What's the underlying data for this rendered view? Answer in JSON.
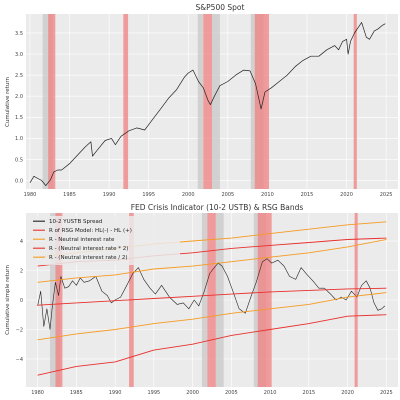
{
  "chart_data": [
    {
      "type": "line",
      "title": "S&P500 Spot",
      "xlabel": "",
      "ylabel": "Cumulative return",
      "xlim": [
        1979.5,
        2026.5
      ],
      "ylim": [
        -0.2,
        3.95
      ],
      "xticks": [
        1980,
        1985,
        1990,
        1995,
        2000,
        2005,
        2010,
        2015,
        2020,
        2025
      ],
      "yticks": [
        0.0,
        0.5,
        1.0,
        1.5,
        2.0,
        2.5,
        3.0,
        3.5
      ],
      "ytick_labels": [
        "0.0",
        "0.5",
        "1.0",
        "1.5",
        "2.0",
        "2.5",
        "3.0",
        "3.5"
      ],
      "grid": true,
      "bands": [
        {
          "start": 1981.6,
          "end": 1982.9,
          "kind": "recession",
          "color": "#c8c8c8"
        },
        {
          "start": 1982.3,
          "end": 1983.2,
          "kind": "crisis",
          "color": "#f08080"
        },
        {
          "start": 1991.8,
          "end": 1992.4,
          "kind": "crisis",
          "color": "#f08080"
        },
        {
          "start": 2001.2,
          "end": 2001.9,
          "kind": "recession",
          "color": "#c8c8c8"
        },
        {
          "start": 2001.9,
          "end": 2003.0,
          "kind": "crisis",
          "color": "#f08080"
        },
        {
          "start": 2003.0,
          "end": 2004.0,
          "kind": "recession",
          "color": "#c8c8c8"
        },
        {
          "start": 2007.9,
          "end": 2009.5,
          "kind": "recession",
          "color": "#c8c8c8"
        },
        {
          "start": 2008.4,
          "end": 2010.2,
          "kind": "crisis",
          "color": "#f08080"
        },
        {
          "start": 2020.9,
          "end": 2021.3,
          "kind": "crisis",
          "color": "#f08080"
        }
      ],
      "series": [
        {
          "color": "#222222",
          "x": [
            1980.0,
            1980.5,
            1981.0,
            1981.5,
            1982.0,
            1982.6,
            1983.0,
            1983.5,
            1984.0,
            1985.0,
            1986.0,
            1987.0,
            1987.7,
            1987.9,
            1988.5,
            1989.5,
            1990.3,
            1990.8,
            1991.5,
            1992.5,
            1993.5,
            1994.5,
            1995.5,
            1996.5,
            1997.5,
            1998.5,
            1999.5,
            2000.0,
            2000.6,
            2001.3,
            2001.9,
            2002.5,
            2002.8,
            2003.3,
            2004.0,
            2005.0,
            2006.0,
            2007.0,
            2007.8,
            2008.5,
            2009.2,
            2009.7,
            2010.5,
            2011.5,
            2012.5,
            2013.5,
            2014.5,
            2015.5,
            2016.5,
            2017.5,
            2018.5,
            2019.0,
            2019.5,
            2020.0,
            2020.2,
            2020.5,
            2021.0,
            2021.9,
            2022.5,
            2022.9,
            2023.5,
            2024.0,
            2024.5,
            2024.9
          ],
          "values": [
            -0.05,
            0.1,
            0.05,
            0.0,
            -0.12,
            0.02,
            0.2,
            0.25,
            0.25,
            0.4,
            0.6,
            0.8,
            0.92,
            0.58,
            0.72,
            0.95,
            1.0,
            0.85,
            1.05,
            1.18,
            1.25,
            1.2,
            1.45,
            1.7,
            1.95,
            2.15,
            2.45,
            2.55,
            2.62,
            2.35,
            2.2,
            1.9,
            1.8,
            2.0,
            2.25,
            2.35,
            2.5,
            2.62,
            2.6,
            2.3,
            1.7,
            2.1,
            2.2,
            2.35,
            2.5,
            2.7,
            2.85,
            2.95,
            2.95,
            3.1,
            3.2,
            3.1,
            3.3,
            3.35,
            3.0,
            3.3,
            3.5,
            3.75,
            3.4,
            3.35,
            3.55,
            3.6,
            3.68,
            3.72
          ]
        }
      ]
    },
    {
      "type": "line",
      "title": "FED Crisis Indicator (10-2 USTB) & RSG Bands",
      "xlabel": "",
      "ylabel": "Cumulative simple return",
      "xlim": [
        1978.5,
        2026.5
      ],
      "ylim": [
        -5.9,
        5.9
      ],
      "xticks": [
        1980,
        1985,
        1990,
        1995,
        2000,
        2005,
        2010,
        2015,
        2020,
        2025
      ],
      "yticks": [
        -4,
        -2,
        0,
        2,
        4
      ],
      "ytick_labels": [
        "−4",
        "−2",
        "0",
        "2",
        "4"
      ],
      "grid": true,
      "legend_position": "top-left",
      "bands": [
        {
          "start": 1981.6,
          "end": 1982.9,
          "kind": "recession",
          "color": "#c8c8c8"
        },
        {
          "start": 1982.3,
          "end": 1983.2,
          "kind": "crisis",
          "color": "#f08080"
        },
        {
          "start": 1991.8,
          "end": 1992.4,
          "kind": "crisis",
          "color": "#f08080"
        },
        {
          "start": 2001.2,
          "end": 2001.9,
          "kind": "recession",
          "color": "#c8c8c8"
        },
        {
          "start": 2001.9,
          "end": 2003.0,
          "kind": "crisis",
          "color": "#f08080"
        },
        {
          "start": 2003.0,
          "end": 2004.0,
          "kind": "recession",
          "color": "#c8c8c8"
        },
        {
          "start": 2007.9,
          "end": 2009.5,
          "kind": "recession",
          "color": "#c8c8c8"
        },
        {
          "start": 2008.4,
          "end": 2010.2,
          "kind": "crisis",
          "color": "#f08080"
        },
        {
          "start": 2020.9,
          "end": 2021.3,
          "kind": "crisis",
          "color": "#f08080"
        }
      ],
      "series": [
        {
          "name": "10-2 YUSTB Spread",
          "color": "#222222",
          "width": 0.6,
          "x": [
            1980.0,
            1980.4,
            1980.8,
            1981.2,
            1981.6,
            1981.9,
            1982.3,
            1982.7,
            1983.0,
            1983.5,
            1984.0,
            1984.5,
            1985.0,
            1985.5,
            1986.0,
            1986.7,
            1987.5,
            1988.3,
            1989.0,
            1989.5,
            1990.0,
            1990.7,
            1991.5,
            1992.3,
            1993.0,
            1993.7,
            1994.5,
            1995.2,
            1996.0,
            1997.0,
            1998.0,
            1998.8,
            1999.5,
            2000.2,
            2000.8,
            2001.5,
            2002.2,
            2002.8,
            2003.3,
            2003.8,
            2004.5,
            2005.2,
            2006.0,
            2006.8,
            2007.5,
            2008.2,
            2009.0,
            2009.6,
            2010.2,
            2011.0,
            2011.8,
            2012.5,
            2013.3,
            2014.0,
            2014.8,
            2015.5,
            2016.3,
            2017.0,
            2017.8,
            2018.5,
            2019.2,
            2019.8,
            2020.5,
            2021.2,
            2021.8,
            2022.4,
            2022.9,
            2023.4,
            2023.9,
            2024.4,
            2024.8
          ],
          "values": [
            -0.4,
            0.6,
            -1.8,
            -0.6,
            -2.0,
            -0.4,
            1.2,
            0.3,
            1.6,
            0.8,
            0.9,
            1.3,
            1.0,
            1.5,
            1.2,
            1.3,
            1.6,
            0.6,
            0.3,
            -0.2,
            0.0,
            0.2,
            1.0,
            1.8,
            2.2,
            1.4,
            0.8,
            0.4,
            1.0,
            0.2,
            -0.3,
            -0.2,
            -0.6,
            0.0,
            -0.4,
            0.6,
            1.8,
            2.2,
            2.5,
            2.3,
            1.6,
            0.6,
            -0.6,
            -0.9,
            0.2,
            1.2,
            2.6,
            2.8,
            2.5,
            2.7,
            2.3,
            1.6,
            1.4,
            2.2,
            1.7,
            1.3,
            0.8,
            0.8,
            0.4,
            0.0,
            0.2,
            0.0,
            0.6,
            0.2,
            1.0,
            1.3,
            0.8,
            -0.2,
            -0.7,
            -0.6,
            -0.4
          ]
        },
        {
          "name": "R of RSG Model: HL(-) - HL (+)",
          "color": "#e8302c",
          "width": 0.9,
          "x": [
            1980,
            1985,
            1990,
            1995,
            2000,
            2005,
            2010,
            2015,
            2020,
            2025
          ],
          "values": [
            -0.35,
            -0.2,
            -0.05,
            0.1,
            0.25,
            0.4,
            0.55,
            0.65,
            0.75,
            0.8
          ]
        },
        {
          "name": "R - Neutral interest rate",
          "color": "#f59b22",
          "width": 0.9,
          "x": [
            1980,
            1985,
            1990,
            1995,
            2000,
            2005,
            2010,
            2015,
            2020,
            2025
          ],
          "values": [
            1.2,
            1.5,
            1.7,
            2.1,
            2.3,
            2.6,
            2.9,
            3.2,
            3.6,
            4.1
          ]
        },
        {
          "name": "R - (Neutral interest rate * 2)",
          "color": "#e8302c",
          "width": 0.9,
          "x": [
            1980,
            1985,
            1990,
            1995,
            2000,
            2005,
            2010,
            2015,
            2020,
            2025
          ],
          "values": [
            -5.1,
            -4.5,
            -4.2,
            -3.4,
            -3.0,
            -2.4,
            -2.0,
            -1.6,
            -1.1,
            -1.0
          ]
        },
        {
          "name": "R - (Neutral interest rate / 2)",
          "color": "#f59b22",
          "width": 0.9,
          "x": [
            1980,
            1985,
            1990,
            1995,
            2000,
            2005,
            2010,
            2015,
            2020,
            2025
          ],
          "values": [
            -2.7,
            -2.3,
            -2.0,
            -1.6,
            -1.3,
            -0.9,
            -0.6,
            -0.3,
            0.2,
            0.5
          ]
        },
        {
          "color": "#e8302c",
          "width": 0.9,
          "x": [
            1980,
            1985,
            1990,
            1995,
            2000,
            2005,
            2010,
            2015,
            2020,
            2025
          ],
          "values": [
            2.3,
            2.6,
            2.7,
            3.0,
            3.2,
            3.5,
            3.7,
            3.9,
            4.1,
            4.2
          ]
        },
        {
          "color": "#f59b22",
          "width": 0.9,
          "x": [
            1980,
            1985,
            1990,
            1995,
            2000,
            2005,
            2010,
            2015,
            2020,
            2025
          ],
          "values": [
            2.9,
            3.2,
            3.5,
            3.8,
            4.0,
            4.2,
            4.5,
            4.8,
            5.1,
            5.3
          ]
        }
      ]
    }
  ]
}
